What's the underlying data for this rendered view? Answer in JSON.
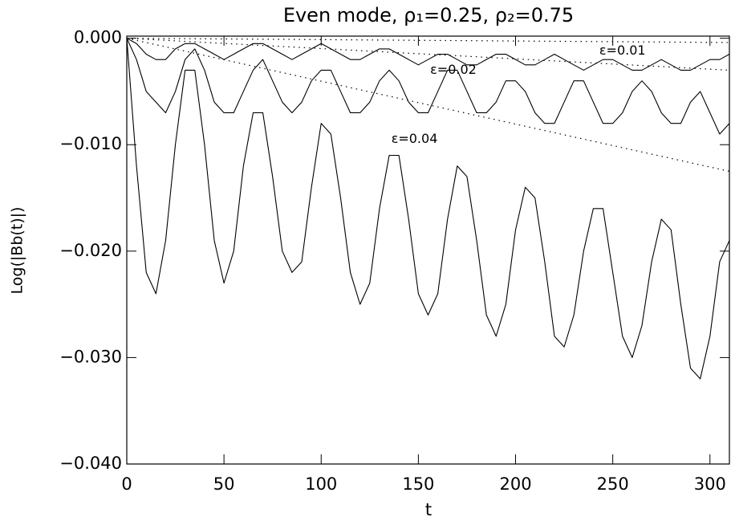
{
  "chart_data": {
    "type": "line",
    "title": "Even mode, ρ₁=0.25, ρ₂=0.75",
    "xlabel": "t",
    "ylabel": "Log(|Bb(t)|)",
    "xlim": [
      0,
      310
    ],
    "ylim": [
      -0.04,
      0.0002
    ],
    "xticks": [
      0,
      50,
      100,
      150,
      200,
      250,
      300
    ],
    "yticks": [
      {
        "value": -0.04,
        "label": "−0.040"
      },
      {
        "value": -0.03,
        "label": "−0.030"
      },
      {
        "value": -0.02,
        "label": "−0.020"
      },
      {
        "value": -0.01,
        "label": "−0.010"
      },
      {
        "value": 0,
        "label": "0.000"
      }
    ],
    "color": "#000000",
    "x": [
      0,
      5,
      10,
      15,
      20,
      25,
      30,
      35,
      40,
      45,
      50,
      55,
      60,
      65,
      70,
      75,
      80,
      85,
      90,
      95,
      100,
      105,
      110,
      115,
      120,
      125,
      130,
      135,
      140,
      145,
      150,
      155,
      160,
      165,
      170,
      175,
      180,
      185,
      190,
      195,
      200,
      205,
      210,
      215,
      220,
      225,
      230,
      235,
      240,
      245,
      250,
      255,
      260,
      265,
      270,
      275,
      280,
      285,
      290,
      295,
      300,
      305,
      310
    ],
    "series": [
      {
        "values": [
          0,
          -0.0005,
          -0.0015,
          -0.002,
          -0.002,
          -0.001,
          -0.0005,
          -0.0005,
          -0.001,
          -0.0015,
          -0.002,
          -0.0015,
          -0.001,
          -0.0005,
          -0.0005,
          -0.001,
          -0.0015,
          -0.002,
          -0.0015,
          -0.001,
          -0.0005,
          -0.001,
          -0.0015,
          -0.002,
          -0.002,
          -0.0015,
          -0.001,
          -0.001,
          -0.0015,
          -0.002,
          -0.0025,
          -0.002,
          -0.0015,
          -0.0015,
          -0.002,
          -0.0025,
          -0.0025,
          -0.002,
          -0.0015,
          -0.0015,
          -0.002,
          -0.0025,
          -0.0025,
          -0.002,
          -0.0015,
          -0.002,
          -0.0025,
          -0.003,
          -0.0025,
          -0.002,
          -0.002,
          -0.0025,
          -0.003,
          -0.003,
          -0.0025,
          -0.002,
          -0.0025,
          -0.003,
          -0.003,
          -0.0025,
          -0.002,
          -0.002,
          -0.0015
        ]
      },
      {
        "values": [
          0,
          -0.002,
          -0.005,
          -0.006,
          -0.007,
          -0.005,
          -0.002,
          -0.001,
          -0.003,
          -0.006,
          -0.007,
          -0.007,
          -0.005,
          -0.003,
          -0.002,
          -0.004,
          -0.006,
          -0.007,
          -0.006,
          -0.004,
          -0.003,
          -0.003,
          -0.005,
          -0.007,
          -0.007,
          -0.006,
          -0.004,
          -0.003,
          -0.004,
          -0.006,
          -0.007,
          -0.007,
          -0.005,
          -0.003,
          -0.003,
          -0.005,
          -0.007,
          -0.007,
          -0.006,
          -0.004,
          -0.004,
          -0.005,
          -0.007,
          -0.008,
          -0.008,
          -0.006,
          -0.004,
          -0.004,
          -0.006,
          -0.008,
          -0.008,
          -0.007,
          -0.005,
          -0.004,
          -0.005,
          -0.007,
          -0.008,
          -0.008,
          -0.006,
          -0.005,
          -0.007,
          -0.009,
          -0.008
        ]
      },
      {
        "values": [
          0,
          -0.012,
          -0.022,
          -0.024,
          -0.019,
          -0.01,
          -0.003,
          -0.003,
          -0.01,
          -0.019,
          -0.023,
          -0.02,
          -0.012,
          -0.007,
          -0.007,
          -0.013,
          -0.02,
          -0.022,
          -0.021,
          -0.014,
          -0.008,
          -0.009,
          -0.015,
          -0.022,
          -0.025,
          -0.023,
          -0.016,
          -0.011,
          -0.011,
          -0.017,
          -0.024,
          -0.026,
          -0.024,
          -0.017,
          -0.012,
          -0.013,
          -0.019,
          -0.026,
          -0.028,
          -0.025,
          -0.018,
          -0.014,
          -0.015,
          -0.021,
          -0.028,
          -0.029,
          -0.026,
          -0.02,
          -0.016,
          -0.016,
          -0.022,
          -0.028,
          -0.03,
          -0.027,
          -0.021,
          -0.017,
          -0.018,
          -0.025,
          -0.031,
          -0.032,
          -0.028,
          -0.021,
          -0.019
        ]
      },
      {
        "x": [
          0,
          310
        ],
        "values": [
          0,
          -0.0004
        ],
        "dash": "dotted"
      },
      {
        "x": [
          0,
          310
        ],
        "values": [
          0,
          -0.003
        ],
        "dash": "dotted"
      },
      {
        "x": [
          0,
          310
        ],
        "values": [
          0,
          -0.0125
        ],
        "dash": "dotted"
      }
    ],
    "annotations": [
      {
        "text": "ε=0.01",
        "x": 255,
        "y": -0.0012
      },
      {
        "text": "ε=0.02",
        "x": 168,
        "y": -0.003
      },
      {
        "text": "ε=0.04",
        "x": 148,
        "y": -0.0095
      }
    ]
  }
}
